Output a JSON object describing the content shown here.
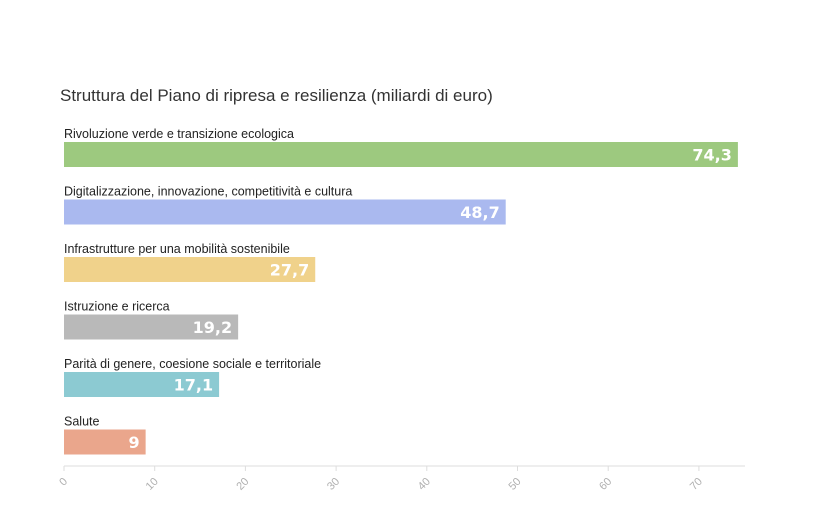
{
  "chart_data": {
    "type": "bar",
    "orientation": "horizontal",
    "title": "Struttura del Piano di ripresa e resilienza (miliardi di euro)",
    "categories": [
      "Rivoluzione verde e transizione ecologica",
      "Digitalizzazione, innovazione, competitività e cultura",
      "Infrastrutture per una mobilità sostenibile",
      "Istruzione e ricerca",
      "Parità di genere, coesione sociale e territoriale",
      "Salute"
    ],
    "values": [
      74.3,
      48.7,
      27.7,
      19.2,
      17.1,
      9
    ],
    "value_labels": [
      "74,3",
      "48,7",
      "27,7",
      "19,2",
      "17,1",
      "9"
    ],
    "colors": [
      "#9dc97f",
      "#aab9ef",
      "#f0d28b",
      "#b9b9b9",
      "#8ccad2",
      "#eaa68c"
    ],
    "xlim": [
      0,
      75
    ],
    "x_ticks": [
      0,
      10,
      20,
      30,
      40,
      50,
      60,
      70
    ],
    "x_tick_labels": [
      "0",
      "10",
      "20",
      "30",
      "40",
      "50",
      "60",
      "70"
    ],
    "grid": false,
    "legend": "none"
  }
}
